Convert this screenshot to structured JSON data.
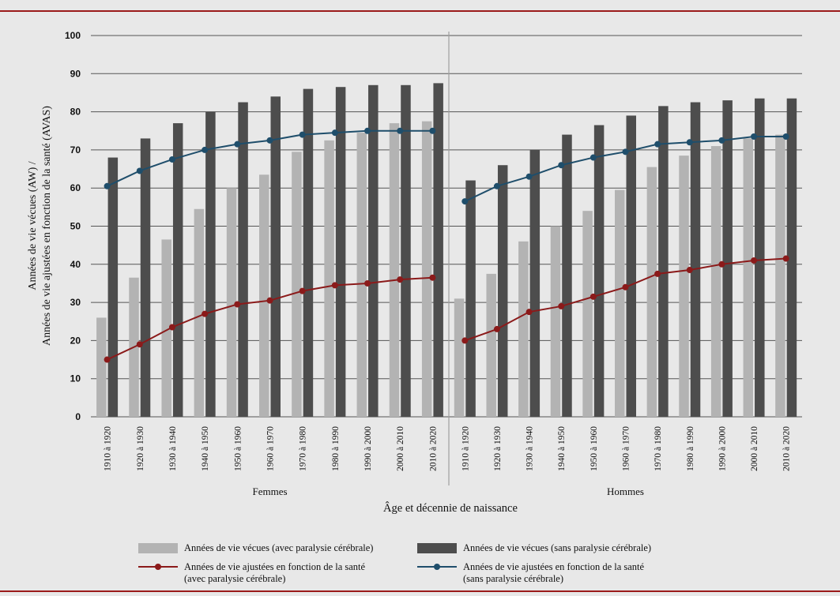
{
  "colors": {
    "background": "#e8e8e8",
    "rule": "#9b1b1b",
    "bar_with_cp": "#b3b3b3",
    "bar_without_cp": "#4d4d4d",
    "line_with_cp": "#8b1a1a",
    "line_without_cp": "#1f4e6b",
    "grid": "#555555"
  },
  "chart_data": {
    "type": "bar",
    "ylabel_line1": "Années de vie vécues (AW) /",
    "ylabel_line2": "Années de vie ajustées en fonction de la santé (AVAS)",
    "xlabel": "Âge et décennie de naissance",
    "ylim": [
      0,
      100
    ],
    "yticks": [
      "0",
      "10",
      "20",
      "30",
      "40",
      "50",
      "60",
      "70",
      "80",
      "90",
      "100"
    ],
    "grid": true,
    "legend_position": "bottom",
    "groups": [
      {
        "name": "Femmes",
        "categories": [
          "1910 à 1920",
          "1920 à 1930",
          "1930 à 1940",
          "1940 à 1950",
          "1950 à 1960",
          "1960 à 1970",
          "1970 à 1980",
          "1980 à 1990",
          "1990 à 2000",
          "2000 à 2010",
          "2010 à 2020"
        ],
        "series": [
          {
            "name": "Années de vie vécues (avec paralysie cérébrale)",
            "kind": "bar",
            "values": [
              26,
              36.5,
              46.5,
              54.5,
              60,
              63.5,
              69.5,
              72.5,
              74.5,
              77,
              77.5
            ]
          },
          {
            "name": "Années de vie vécues (sans paralysie cérébrale)",
            "kind": "bar",
            "values": [
              68,
              73,
              77,
              80,
              82.5,
              84,
              86,
              86.5,
              87,
              87,
              87.5
            ]
          },
          {
            "name": "Années de vie ajustées en fonction de la santé (avec paralysie cérébrale)",
            "kind": "line",
            "values": [
              15,
              19,
              23.5,
              27,
              29.5,
              30.5,
              33,
              34.5,
              35,
              36,
              36.5
            ]
          },
          {
            "name": "Années de vie ajustées en fonction de la santé (sans paralysie cérébrale)",
            "kind": "line",
            "values": [
              60.5,
              64.5,
              67.5,
              70,
              71.5,
              72.5,
              74,
              74.5,
              75,
              75,
              75
            ]
          }
        ]
      },
      {
        "name": "Hommes",
        "categories": [
          "1910 à 1920",
          "1920 à 1930",
          "1930 à 1940",
          "1940 à 1950",
          "1950 à 1960",
          "1960 à 1970",
          "1970 à 1980",
          "1980 à 1990",
          "1990 à 2000",
          "2000 à 2010",
          "2010 à 2020"
        ],
        "series": [
          {
            "name": "Années de vie vécues (avec paralysie cérébrale)",
            "kind": "bar",
            "values": [
              31,
              37.5,
              46,
              50,
              54,
              59.5,
              65.5,
              68.5,
              71,
              73,
              74
            ]
          },
          {
            "name": "Années de vie vécues (sans paralysie cérébrale)",
            "kind": "bar",
            "values": [
              62,
              66,
              70,
              74,
              76.5,
              79,
              81.5,
              82.5,
              83,
              83.5,
              83.5
            ]
          },
          {
            "name": "Années de vie ajustées en fonction de la santé (avec paralysie cérébrale)",
            "kind": "line",
            "values": [
              20,
              23,
              27.5,
              29,
              31.5,
              34,
              37.5,
              38.5,
              40,
              41,
              41.5
            ]
          },
          {
            "name": "Années de vie ajustées en fonction de la santé (sans paralysie cérébrale)",
            "kind": "line",
            "values": [
              56.5,
              60.5,
              63,
              66,
              68,
              69.5,
              71.5,
              72,
              72.5,
              73.5,
              73.5
            ]
          }
        ]
      }
    ]
  },
  "legend": {
    "bar_with_cp": "Années de vie vécues (avec paralysie cérébrale)",
    "bar_without_cp": "Années de vie vécues (sans paralysie cérébrale)",
    "line_with_cp_1": "Années de vie ajustées en fonction de la santé",
    "line_with_cp_2": "(avec paralysie cérébrale)",
    "line_without_cp_1": "Années de vie ajustées en fonction de la santé",
    "line_without_cp_2": "(sans paralysie cérébrale)"
  }
}
